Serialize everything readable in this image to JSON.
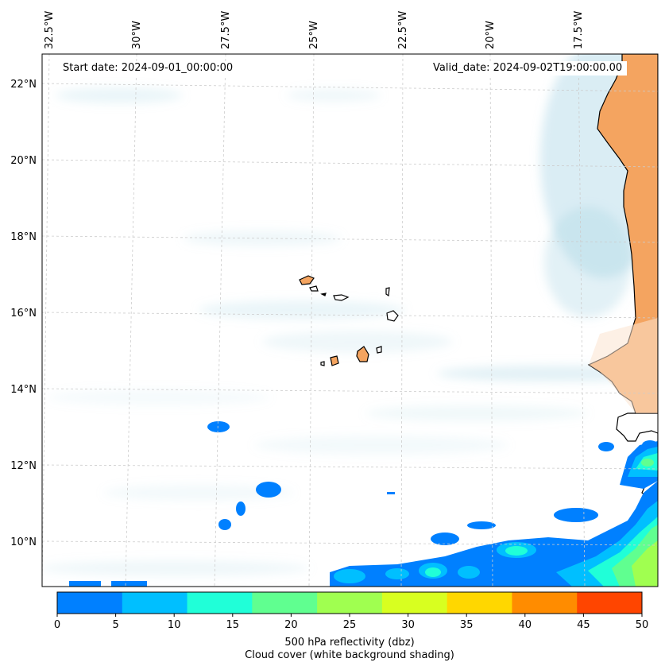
{
  "map": {
    "start_date": "Start date: 2024-09-01_00:00:00",
    "valid_date": "Valid_date: 2024-09-02T19:00:00.00",
    "lon_labels": [
      "32.5°W",
      "30°W",
      "27.5°W",
      "25°W",
      "22.5°W",
      "20°W",
      "17.5°W"
    ],
    "lat_labels": [
      "22°N",
      "20°N",
      "18°N",
      "16°N",
      "14°N",
      "12°N",
      "10°N"
    ],
    "colors": {
      "land_fill": "#f4a460",
      "cloud_shade": "#add8e6",
      "coastline": "#000000",
      "gridline": "#cccccc"
    }
  },
  "colorbar": {
    "title": "500 hPa reflectivity (dbz)",
    "subtitle": "Cloud cover (white background shading)",
    "ticks": [
      "0",
      "5",
      "10",
      "15",
      "20",
      "25",
      "30",
      "35",
      "40",
      "45",
      "50"
    ],
    "colors": [
      "#0080ff",
      "#00bfff",
      "#20ffd8",
      "#60ff90",
      "#a0ff50",
      "#d8ff20",
      "#ffd700",
      "#ff8c00",
      "#ff4500"
    ]
  }
}
